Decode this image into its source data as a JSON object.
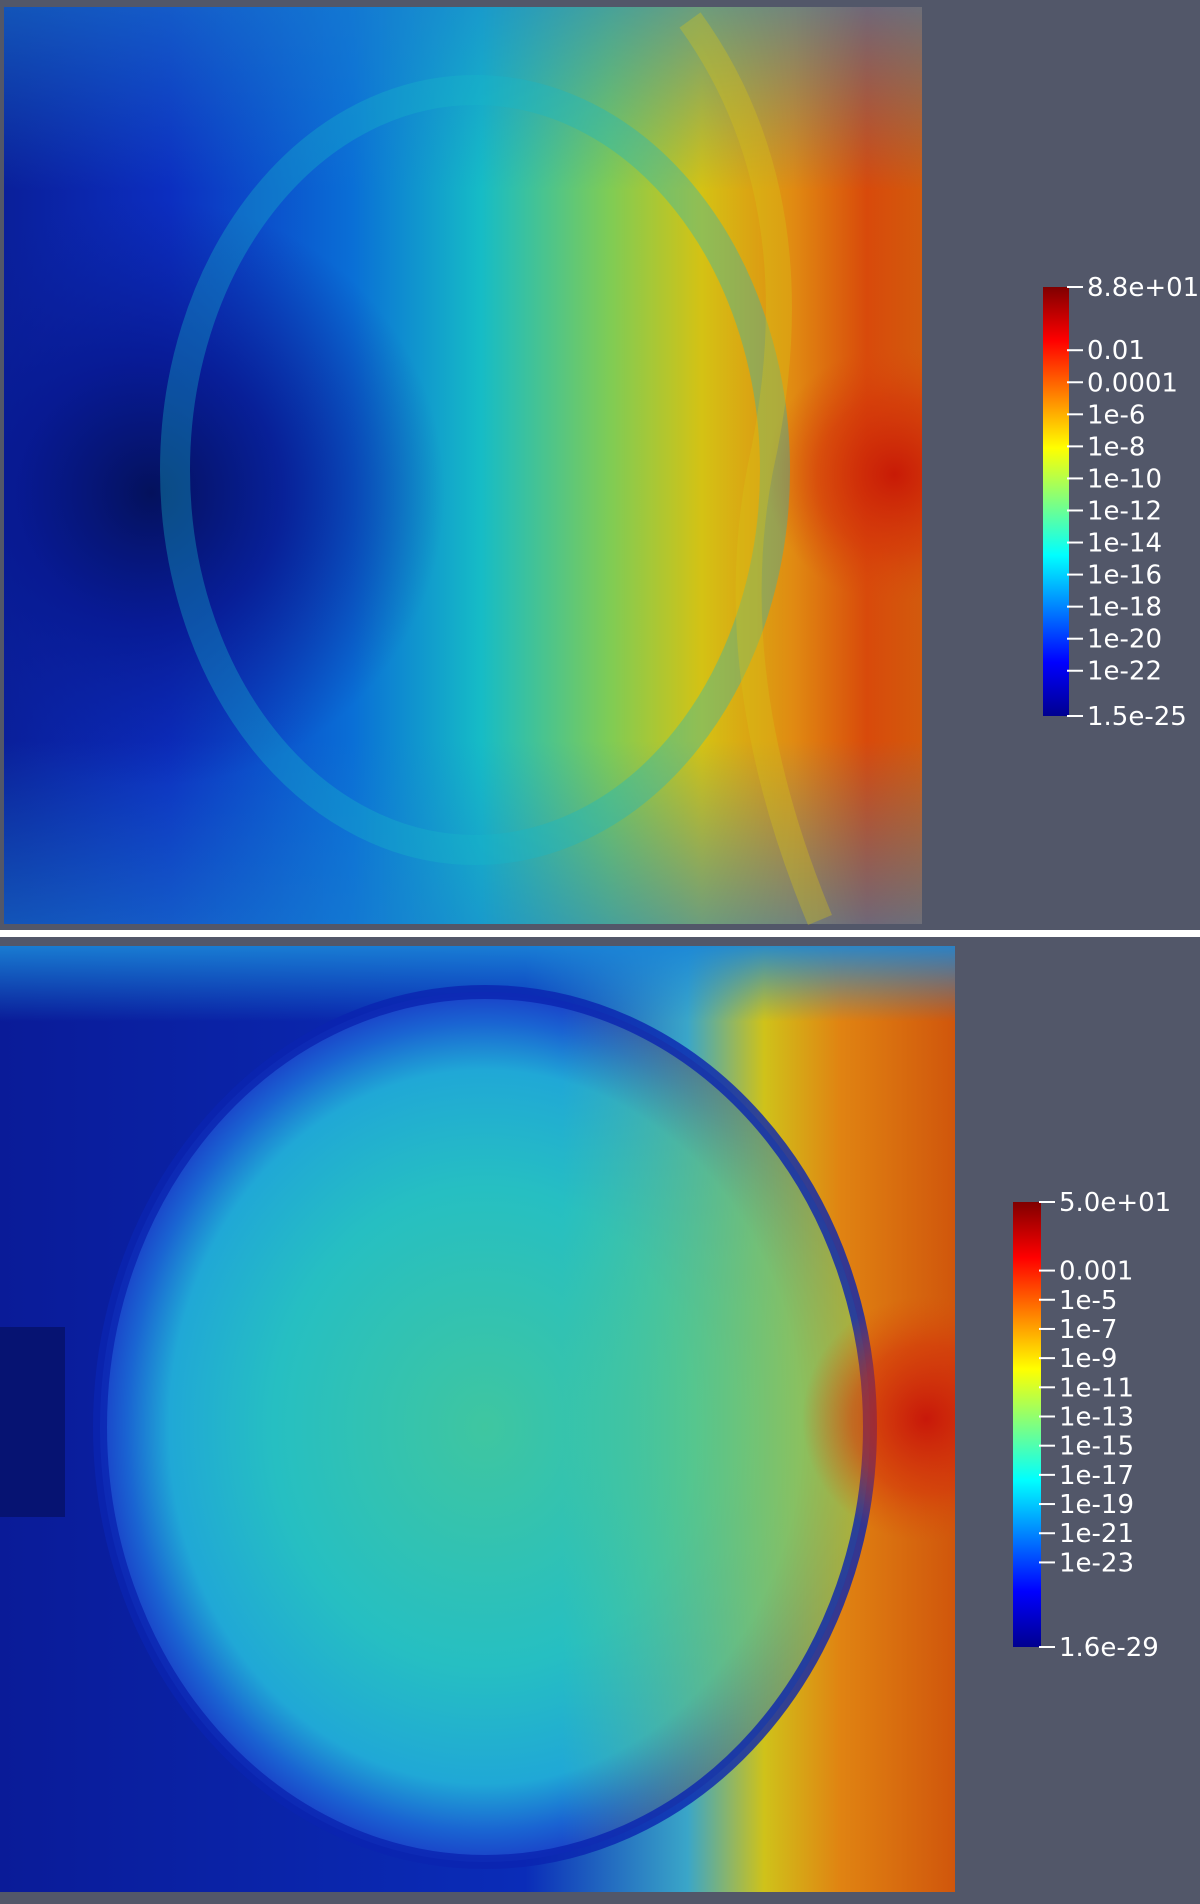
{
  "chart_data": [
    {
      "type": "heatmap",
      "colormap": "jet",
      "colorbar": {
        "placement": "right",
        "scale": "log",
        "max_label": "8.8e+01",
        "min_label": "1.5e-25",
        "tick_labels": [
          "8.8e+01",
          "0.01",
          "0.0001",
          "1e-6",
          "1e-8",
          "1e-10",
          "1e-12",
          "1e-14",
          "1e-16",
          "1e-18",
          "1e-20",
          "1e-22",
          "1.5e-25"
        ],
        "tick_values": [
          88,
          0.01,
          0.0001,
          1e-06,
          1e-08,
          1e-10,
          1e-12,
          1e-14,
          1e-16,
          1e-18,
          1e-20,
          1e-22,
          1.5e-25
        ]
      }
    },
    {
      "type": "heatmap",
      "colormap": "jet",
      "colorbar": {
        "placement": "right",
        "scale": "log",
        "max_label": "5.0e+01",
        "min_label": "1.6e-29",
        "tick_labels": [
          "5.0e+01",
          "0.001",
          "1e-5",
          "1e-7",
          "1e-9",
          "1e-11",
          "1e-13",
          "1e-15",
          "1e-17",
          "1e-19",
          "1e-21",
          "1e-23",
          "1.6e-29"
        ],
        "tick_values": [
          50,
          0.001,
          1e-05,
          1e-07,
          1e-09,
          1e-11,
          1e-13,
          1e-15,
          1e-17,
          1e-19,
          1e-21,
          1e-23,
          1.6e-29
        ]
      }
    }
  ]
}
